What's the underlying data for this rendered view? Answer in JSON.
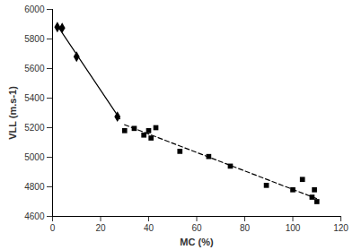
{
  "chart_data": {
    "type": "scatter",
    "x_label": "MC (%)",
    "y_label": "VLL (m.s-1)",
    "xlim": [
      0,
      120
    ],
    "xticks": [
      0,
      20,
      40,
      60,
      80,
      100,
      120
    ],
    "ylim": [
      4600,
      6000
    ],
    "yticks": [
      4600,
      4800,
      5000,
      5200,
      5400,
      5600,
      5800,
      6000
    ],
    "grid": false,
    "series": [
      {
        "type": "scatter",
        "marker": "diamond",
        "color": "#000000",
        "x": [
          2,
          4,
          10,
          27
        ],
        "values": [
          5880,
          5875,
          5680,
          5275
        ]
      },
      {
        "type": "scatter",
        "marker": "square",
        "color": "#000000",
        "x": [
          30,
          34,
          38,
          40,
          41,
          43,
          53,
          65,
          74,
          89,
          100,
          104,
          108,
          109,
          110
        ],
        "values": [
          5180,
          5195,
          5150,
          5180,
          5130,
          5200,
          5040,
          5005,
          4940,
          4810,
          4780,
          4850,
          4730,
          4780,
          4700
        ]
      },
      {
        "type": "line",
        "line_style": "solid",
        "color": "#000000",
        "x": [
          2,
          28
        ],
        "values": [
          5890,
          5260
        ]
      },
      {
        "type": "line",
        "line_style": "dashed",
        "color": "#000000",
        "x": [
          30,
          110
        ],
        "values": [
          5220,
          4720
        ]
      }
    ]
  }
}
